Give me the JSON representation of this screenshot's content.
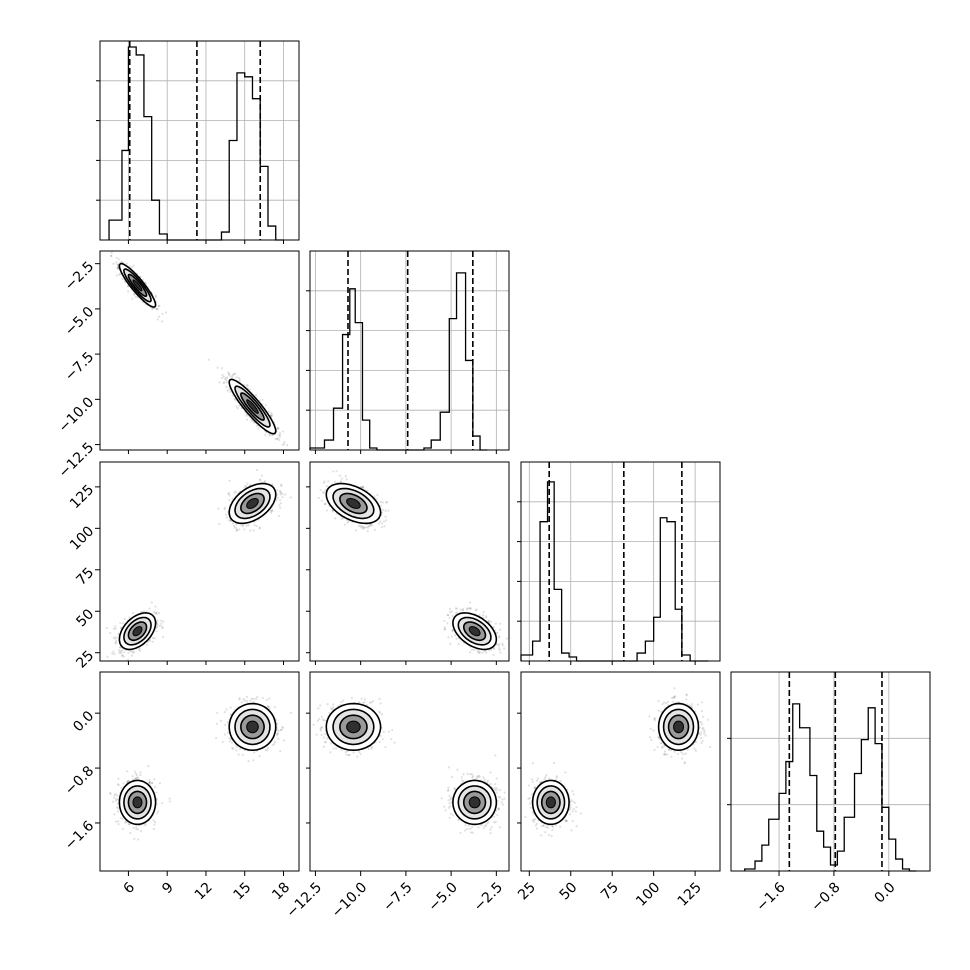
{
  "chart_data": {
    "type": "corner",
    "grid": true,
    "parameters": [
      {
        "range": [
          3.8,
          19.2
        ],
        "ticks": [
          6,
          9,
          12,
          15,
          18
        ],
        "tick_labels": [
          "6",
          "9",
          "12",
          "15",
          "18"
        ],
        "quantiles": [
          6.1,
          11.3,
          16.2
        ],
        "hist_bins": [
          4.5,
          5.5,
          6.0,
          6.6,
          7.2,
          7.8,
          8.4,
          9.0,
          9.6,
          13.2,
          13.8,
          14.4,
          15.0,
          15.6,
          16.2,
          16.8,
          17.4,
          18.0
        ],
        "hist_counts": [
          0.1,
          0.45,
          0.97,
          0.93,
          0.62,
          0.2,
          0.03,
          0,
          0,
          0.04,
          0.5,
          0.84,
          0.82,
          0.71,
          0.37,
          0.07,
          0
        ]
      },
      {
        "range": [
          -12.8,
          -1.8
        ],
        "ticks": [
          -12.5,
          -10.0,
          -7.5,
          -5.0,
          -2.5
        ],
        "tick_labels": [
          "−12.5",
          "−10.0",
          "−7.5",
          "−5.0",
          "−2.5"
        ],
        "quantiles": [
          -10.7,
          -7.4,
          -3.8
        ],
        "hist_bins": [
          -12.8,
          -12.0,
          -11.5,
          -11.0,
          -10.6,
          -10.3,
          -9.9,
          -9.5,
          -9.1,
          -8.7,
          -6.5,
          -6.1,
          -5.6,
          -5.1,
          -4.7,
          -4.2,
          -3.8,
          -3.4,
          -3.0
        ],
        "hist_counts": [
          0.01,
          0.05,
          0.21,
          0.58,
          0.81,
          0.64,
          0.15,
          0.01,
          0,
          0,
          0.01,
          0.05,
          0.19,
          0.66,
          0.89,
          0.45,
          0.07,
          0
        ]
      },
      {
        "range": [
          20,
          140
        ],
        "ticks": [
          25,
          50,
          75,
          100,
          125
        ],
        "tick_labels": [
          "25",
          "50",
          "75",
          "100",
          "125"
        ],
        "quantiles": [
          37,
          82,
          117
        ],
        "hist_bins": [
          20,
          27,
          31.5,
          36,
          40,
          44.5,
          49,
          53.5,
          58,
          63,
          90,
          95,
          100,
          104,
          108,
          113,
          117,
          122,
          126,
          133
        ],
        "hist_counts": [
          0.03,
          0.1,
          0.7,
          0.9,
          0.36,
          0.04,
          0.02,
          0,
          0,
          0,
          0.04,
          0.1,
          0.22,
          0.72,
          0.7,
          0.26,
          0.03,
          0,
          0
        ]
      },
      {
        "range": [
          -2.3,
          0.6
        ],
        "ticks": [
          -1.6,
          -0.8,
          0.0
        ],
        "tick_labels": [
          "−1.6",
          "−0.8",
          "0.0"
        ],
        "quantiles": [
          -1.45,
          -0.78,
          -0.1
        ],
        "hist_bins": [
          -2.1,
          -1.95,
          -1.85,
          -1.75,
          -1.6,
          -1.5,
          -1.4,
          -1.3,
          -1.15,
          -1.05,
          -0.95,
          -0.85,
          -0.75,
          -0.65,
          -0.5,
          -0.4,
          -0.3,
          -0.2,
          -0.1,
          0.0,
          0.1,
          0.2,
          0.3,
          0.4
        ],
        "hist_counts": [
          0.01,
          0.05,
          0.13,
          0.26,
          0.39,
          0.55,
          0.84,
          0.72,
          0.48,
          0.2,
          0.12,
          0.03,
          0.1,
          0.27,
          0.49,
          0.66,
          0.82,
          0.64,
          0.32,
          0.16,
          0.06,
          0.01,
          0
        ]
      }
    ],
    "modes": [
      {
        "center": [
          6.7,
          -3.7,
          38,
          -1.3
        ],
        "sd": [
          0.7,
          0.6,
          5.5,
          0.16
        ]
      },
      {
        "center": [
          15.6,
          -10.4,
          115,
          -0.2
        ],
        "sd": [
          0.9,
          0.75,
          6.0,
          0.17
        ]
      }
    ],
    "correlations": {
      "1-0": -0.9,
      "2-0": 0.45,
      "2-1": -0.45,
      "3-0": 0.0,
      "3-1": 0.0,
      "3-2": 0.0
    }
  }
}
